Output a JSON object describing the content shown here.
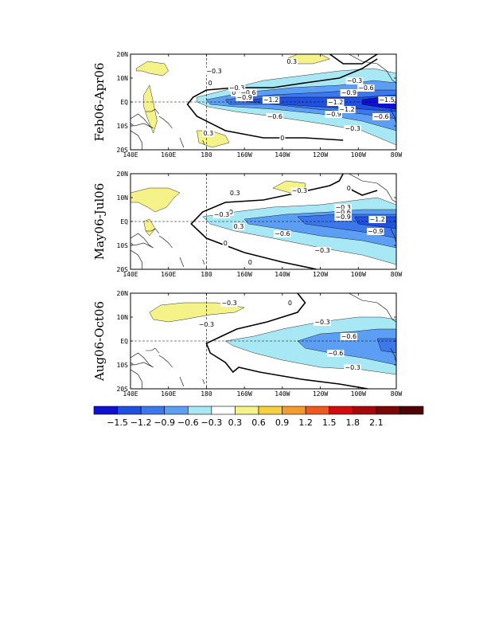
{
  "panels": [
    {
      "label": "Feb06-Apr06",
      "labels": [
        {
          "t": "-0.3",
          "x": -176,
          "y": 13
        },
        {
          "t": "0.3",
          "x": -164,
          "y": 4
        },
        {
          "t": "0.3",
          "x": -135,
          "y": 17
        },
        {
          "t": "0",
          "x": -178,
          "y": 8
        },
        {
          "t": "-0.3",
          "x": -164,
          "y": 6
        },
        {
          "t": "-0.6",
          "x": -158,
          "y": 4
        },
        {
          "t": "-0.9",
          "x": -160,
          "y": 2
        },
        {
          "t": "-1.2",
          "x": -146,
          "y": 1
        },
        {
          "t": "-1.2",
          "x": -112,
          "y": 0
        },
        {
          "t": "-1.5",
          "x": -85,
          "y": 1
        },
        {
          "t": "-0.3",
          "x": -102,
          "y": 9
        },
        {
          "t": "-0.6",
          "x": -96,
          "y": 6
        },
        {
          "t": "-0.9",
          "x": -105,
          "y": 4
        },
        {
          "t": "-0.9",
          "x": -113,
          "y": -5
        },
        {
          "t": "-1.2",
          "x": -106,
          "y": -3
        },
        {
          "t": "-0.6",
          "x": -144,
          "y": -6
        },
        {
          "t": "-0.6",
          "x": -88,
          "y": -6
        },
        {
          "t": "-0.3",
          "x": -103,
          "y": -11
        },
        {
          "t": "0",
          "x": -140,
          "y": -15
        },
        {
          "t": "0.3",
          "x": -179,
          "y": -13
        }
      ]
    },
    {
      "label": "May06-Jul06",
      "labels": [
        {
          "t": "0.3",
          "x": -165,
          "y": 12
        },
        {
          "t": "-0.3",
          "x": -131,
          "y": 13
        },
        {
          "t": "0",
          "x": -105,
          "y": 14
        },
        {
          "t": "0",
          "x": -167,
          "y": 4
        },
        {
          "t": "-0.3",
          "x": -172,
          "y": 3
        },
        {
          "t": "-0.3",
          "x": -108,
          "y": 6
        },
        {
          "t": "-0.6",
          "x": -108,
          "y": 4
        },
        {
          "t": "-0.9",
          "x": -108,
          "y": 2
        },
        {
          "t": "-1.2",
          "x": -90,
          "y": 1
        },
        {
          "t": "-0.9",
          "x": -91,
          "y": -4
        },
        {
          "t": "-0.6",
          "x": -140,
          "y": -5
        },
        {
          "t": "-0.3",
          "x": -119,
          "y": -12
        },
        {
          "t": "0",
          "x": -170,
          "y": -9
        },
        {
          "t": "0.3",
          "x": -163,
          "y": -2
        },
        {
          "t": "0",
          "x": -157,
          "y": -17
        }
      ]
    },
    {
      "label": "Aug06-Oct06",
      "labels": [
        {
          "t": "-0.3",
          "x": -168,
          "y": 16
        },
        {
          "t": "-0.3",
          "x": -180,
          "y": 7
        },
        {
          "t": "0",
          "x": -136,
          "y": 16
        },
        {
          "t": "-0.3",
          "x": -119,
          "y": 8
        },
        {
          "t": "-0.6",
          "x": -105,
          "y": 2
        },
        {
          "t": "-0.6",
          "x": -112,
          "y": -5
        },
        {
          "t": "-0.3",
          "x": -103,
          "y": -11
        }
      ]
    }
  ],
  "xticks": [
    "140E",
    "160E",
    "180",
    "160W",
    "140W",
    "120W",
    "100W",
    "80W"
  ],
  "yticks": [
    "20N",
    "10N",
    "EQ",
    "10S",
    "20S"
  ],
  "colorbar": {
    "labels": [
      "-1.5",
      "-1.2",
      "-0.9",
      "-0.6",
      "-0.3",
      "0.3",
      "0.6",
      "0.9",
      "1.2",
      "1.5",
      "1.8",
      "2.1"
    ],
    "colors": [
      "#1010d0",
      "#2050e0",
      "#3c78ec",
      "#5c9ef4",
      "#a8e8f4",
      "#ffffff",
      "#f6f28a",
      "#f6d040",
      "#f59a2c",
      "#ee5a1e",
      "#d20c0c",
      "#a50a0a",
      "#7a0606",
      "#4e0404"
    ]
  }
}
